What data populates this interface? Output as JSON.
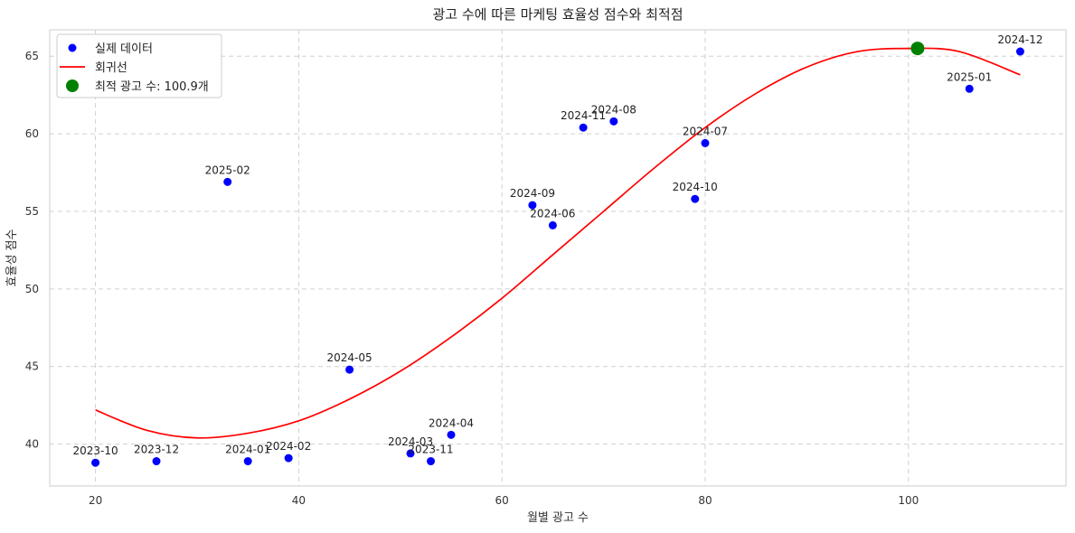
{
  "chart_data": {
    "type": "scatter",
    "title": "광고 수에 따른 마케팅 효율성 점수와 최적점",
    "xlabel": "월별 광고 수",
    "ylabel": "효율성 점수",
    "xlim": [
      15.5,
      115.5
    ],
    "ylim": [
      37.3,
      66.7
    ],
    "x_ticks": [
      20,
      40,
      60,
      80,
      100
    ],
    "y_ticks": [
      40,
      45,
      50,
      55,
      60,
      65
    ],
    "grid": true,
    "legend_position": "top-left",
    "series": [
      {
        "name": "실제 데이터",
        "kind": "scatter",
        "color": "#0000ff",
        "points": [
          {
            "label": "2023-10",
            "x": 20,
            "y": 38.8
          },
          {
            "label": "2023-11",
            "x": 53,
            "y": 38.9
          },
          {
            "label": "2023-12",
            "x": 26,
            "y": 38.9
          },
          {
            "label": "2024-01",
            "x": 35,
            "y": 38.9
          },
          {
            "label": "2024-02",
            "x": 39,
            "y": 39.1
          },
          {
            "label": "2024-03",
            "x": 51,
            "y": 39.4
          },
          {
            "label": "2024-04",
            "x": 55,
            "y": 40.6
          },
          {
            "label": "2024-05",
            "x": 45,
            "y": 44.8
          },
          {
            "label": "2024-06",
            "x": 65,
            "y": 54.1
          },
          {
            "label": "2024-07",
            "x": 80,
            "y": 59.4
          },
          {
            "label": "2024-08",
            "x": 71,
            "y": 60.8
          },
          {
            "label": "2024-09",
            "x": 63,
            "y": 55.4
          },
          {
            "label": "2024-10",
            "x": 79,
            "y": 55.8
          },
          {
            "label": "2024-11",
            "x": 68,
            "y": 60.4
          },
          {
            "label": "2024-12",
            "x": 111,
            "y": 65.3
          },
          {
            "label": "2025-01",
            "x": 106,
            "y": 62.9
          },
          {
            "label": "2025-02",
            "x": 33,
            "y": 56.9
          }
        ]
      },
      {
        "name": "회귀선",
        "kind": "line",
        "color": "#ff0000",
        "points": [
          {
            "x": 20,
            "y": 42.2
          },
          {
            "x": 25,
            "y": 40.9
          },
          {
            "x": 30,
            "y": 40.4
          },
          {
            "x": 35,
            "y": 40.7
          },
          {
            "x": 40,
            "y": 41.5
          },
          {
            "x": 45,
            "y": 42.9
          },
          {
            "x": 50,
            "y": 44.7
          },
          {
            "x": 55,
            "y": 46.9
          },
          {
            "x": 60,
            "y": 49.4
          },
          {
            "x": 65,
            "y": 52.2
          },
          {
            "x": 70,
            "y": 55.0
          },
          {
            "x": 75,
            "y": 57.8
          },
          {
            "x": 80,
            "y": 60.4
          },
          {
            "x": 85,
            "y": 62.6
          },
          {
            "x": 90,
            "y": 64.3
          },
          {
            "x": 95,
            "y": 65.3
          },
          {
            "x": 100,
            "y": 65.5
          },
          {
            "x": 105,
            "y": 65.3
          },
          {
            "x": 111,
            "y": 63.8
          }
        ]
      },
      {
        "name": "최적 광고 수: 100.9개",
        "kind": "marker",
        "color": "#008000",
        "points": [
          {
            "x": 100.9,
            "y": 65.5
          }
        ]
      }
    ]
  }
}
